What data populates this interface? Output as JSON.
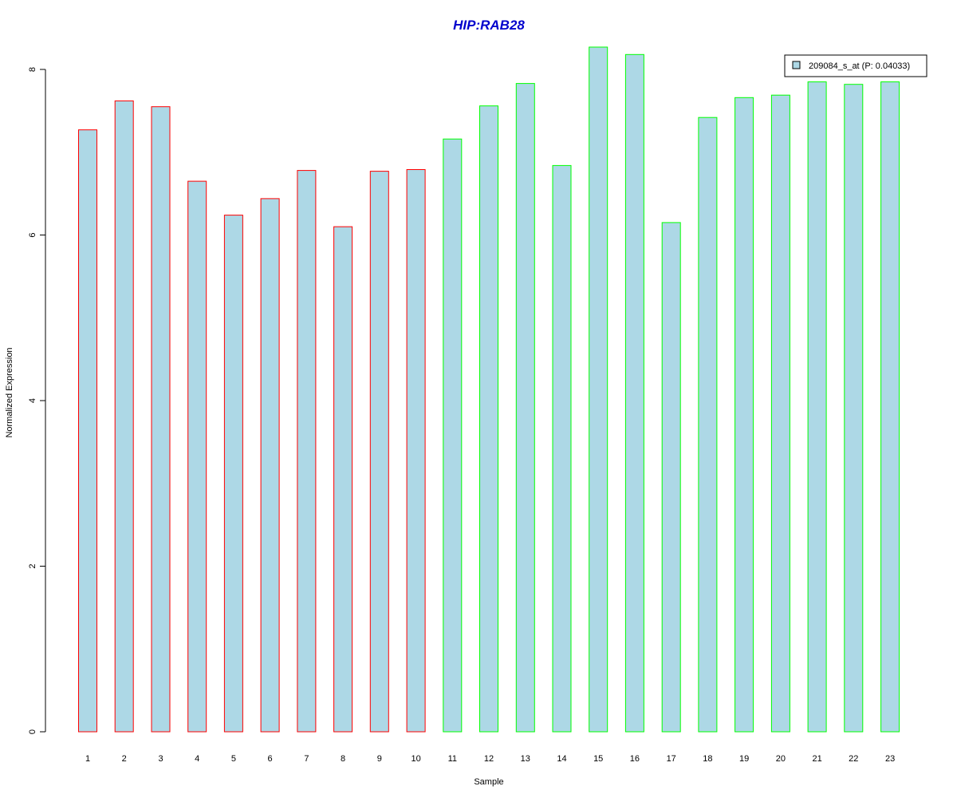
{
  "chart_data": {
    "type": "bar",
    "title": "HIP:RAB28",
    "xlabel": "Sample",
    "ylabel": "Normalized Expression",
    "ylim": [
      0,
      8.27
    ],
    "yticks": [
      0,
      2,
      4,
      6,
      8
    ],
    "grid": false,
    "legend_position": "top-right",
    "categories": [
      "1",
      "2",
      "3",
      "4",
      "5",
      "6",
      "7",
      "8",
      "9",
      "10",
      "11",
      "12",
      "13",
      "14",
      "15",
      "16",
      "17",
      "18",
      "19",
      "20",
      "21",
      "22",
      "23"
    ],
    "series": [
      {
        "name": "209084_s_at (P: 0.04033)",
        "values": [
          7.27,
          7.62,
          7.55,
          6.65,
          6.24,
          6.44,
          6.78,
          6.1,
          6.77,
          6.79,
          7.16,
          7.56,
          7.83,
          6.84,
          8.27,
          8.18,
          6.15,
          7.42,
          7.66,
          7.69,
          7.85,
          7.82,
          7.85
        ]
      }
    ],
    "groups": [
      1,
      1,
      1,
      1,
      1,
      1,
      1,
      1,
      1,
      1,
      2,
      2,
      2,
      2,
      2,
      2,
      2,
      2,
      2,
      2,
      2,
      2,
      2
    ],
    "colors": {
      "bar_fill": "#add8e6",
      "group1_border": "#ff0000",
      "group2_border": "#00ff00",
      "title": "#0000cd",
      "axis": "#000000"
    }
  }
}
